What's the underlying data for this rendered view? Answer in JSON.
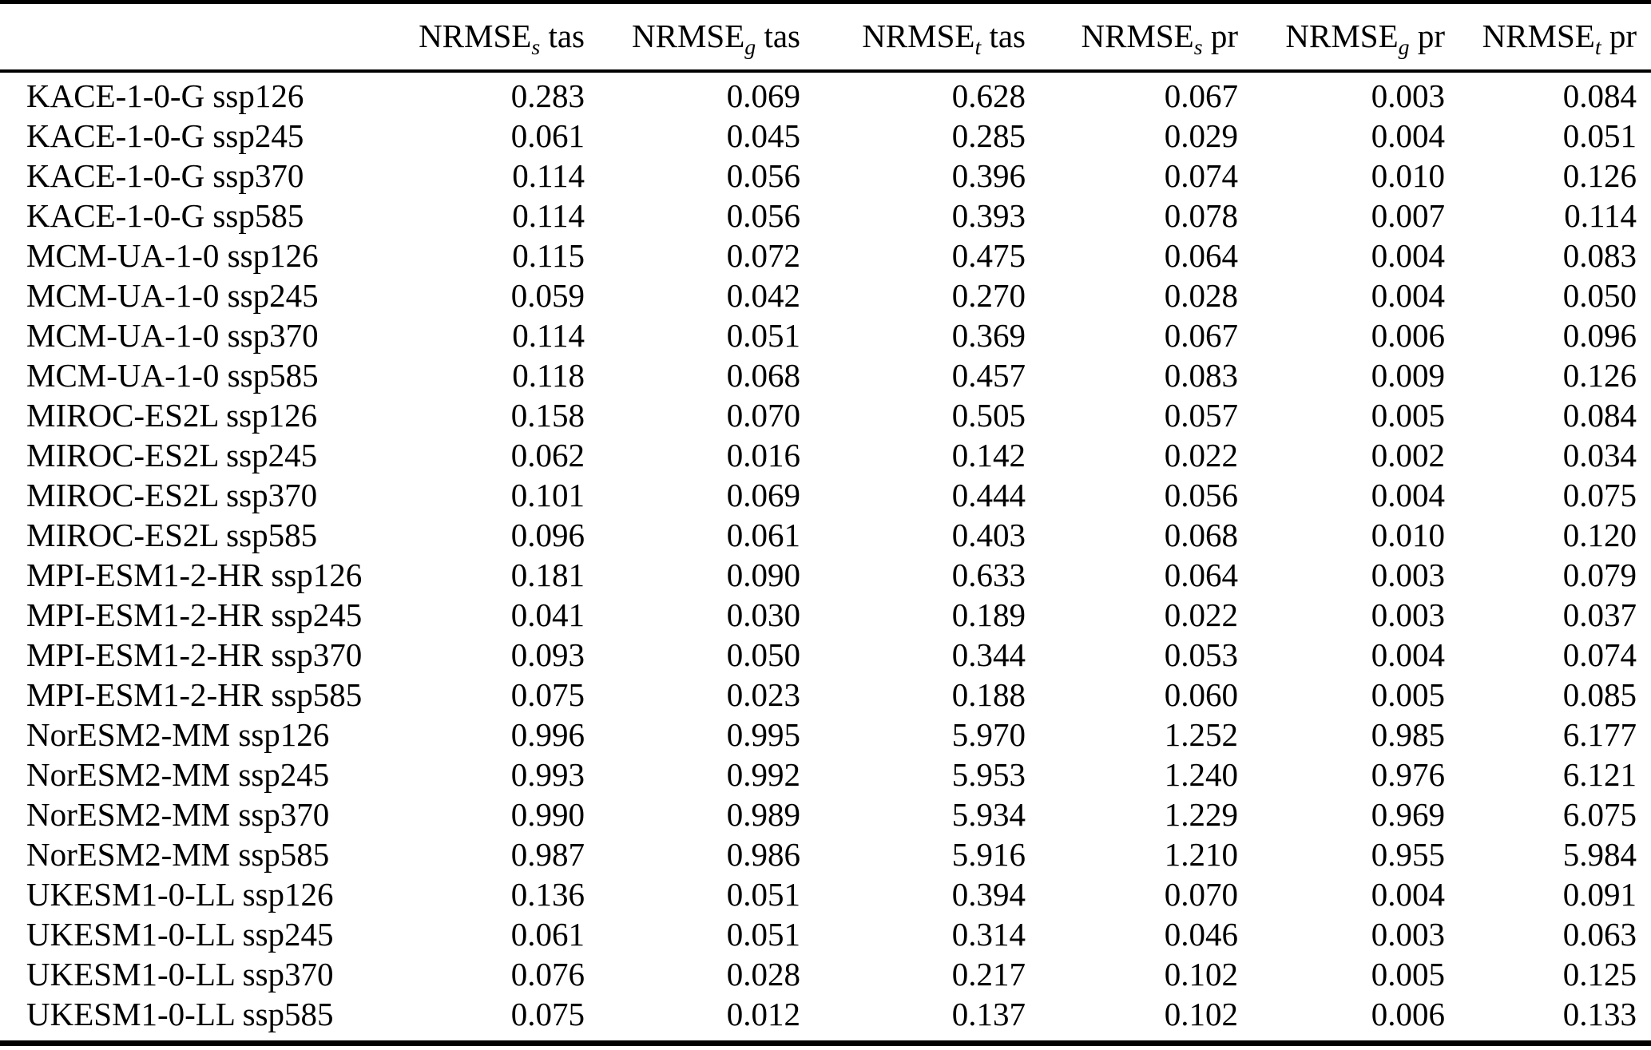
{
  "table": {
    "columns": [
      {
        "base": "NRMSE",
        "sub": "s",
        "metric": "tas"
      },
      {
        "base": "NRMSE",
        "sub": "g",
        "metric": "tas"
      },
      {
        "base": "NRMSE",
        "sub": "t",
        "metric": "tas"
      },
      {
        "base": "NRMSE",
        "sub": "s",
        "metric": "pr"
      },
      {
        "base": "NRMSE",
        "sub": "g",
        "metric": "pr"
      },
      {
        "base": "NRMSE",
        "sub": "t",
        "metric": "pr"
      }
    ],
    "rows": [
      {
        "label": "KACE-1-0-G ssp126",
        "values": [
          "0.283",
          "0.069",
          "0.628",
          "0.067",
          "0.003",
          "0.084"
        ]
      },
      {
        "label": "KACE-1-0-G ssp245",
        "values": [
          "0.061",
          "0.045",
          "0.285",
          "0.029",
          "0.004",
          "0.051"
        ]
      },
      {
        "label": "KACE-1-0-G ssp370",
        "values": [
          "0.114",
          "0.056",
          "0.396",
          "0.074",
          "0.010",
          "0.126"
        ]
      },
      {
        "label": "KACE-1-0-G ssp585",
        "values": [
          "0.114",
          "0.056",
          "0.393",
          "0.078",
          "0.007",
          "0.114"
        ]
      },
      {
        "label": "MCM-UA-1-0 ssp126",
        "values": [
          "0.115",
          "0.072",
          "0.475",
          "0.064",
          "0.004",
          "0.083"
        ]
      },
      {
        "label": "MCM-UA-1-0 ssp245",
        "values": [
          "0.059",
          "0.042",
          "0.270",
          "0.028",
          "0.004",
          "0.050"
        ]
      },
      {
        "label": "MCM-UA-1-0 ssp370",
        "values": [
          "0.114",
          "0.051",
          "0.369",
          "0.067",
          "0.006",
          "0.096"
        ]
      },
      {
        "label": "MCM-UA-1-0 ssp585",
        "values": [
          "0.118",
          "0.068",
          "0.457",
          "0.083",
          "0.009",
          "0.126"
        ]
      },
      {
        "label": "MIROC-ES2L ssp126",
        "values": [
          "0.158",
          "0.070",
          "0.505",
          "0.057",
          "0.005",
          "0.084"
        ]
      },
      {
        "label": "MIROC-ES2L ssp245",
        "values": [
          "0.062",
          "0.016",
          "0.142",
          "0.022",
          "0.002",
          "0.034"
        ]
      },
      {
        "label": "MIROC-ES2L ssp370",
        "values": [
          "0.101",
          "0.069",
          "0.444",
          "0.056",
          "0.004",
          "0.075"
        ]
      },
      {
        "label": "MIROC-ES2L ssp585",
        "values": [
          "0.096",
          "0.061",
          "0.403",
          "0.068",
          "0.010",
          "0.120"
        ]
      },
      {
        "label": "MPI-ESM1-2-HR ssp126",
        "values": [
          "0.181",
          "0.090",
          "0.633",
          "0.064",
          "0.003",
          "0.079"
        ]
      },
      {
        "label": "MPI-ESM1-2-HR ssp245",
        "values": [
          "0.041",
          "0.030",
          "0.189",
          "0.022",
          "0.003",
          "0.037"
        ]
      },
      {
        "label": "MPI-ESM1-2-HR ssp370",
        "values": [
          "0.093",
          "0.050",
          "0.344",
          "0.053",
          "0.004",
          "0.074"
        ]
      },
      {
        "label": "MPI-ESM1-2-HR ssp585",
        "values": [
          "0.075",
          "0.023",
          "0.188",
          "0.060",
          "0.005",
          "0.085"
        ]
      },
      {
        "label": "NorESM2-MM ssp126",
        "values": [
          "0.996",
          "0.995",
          "5.970",
          "1.252",
          "0.985",
          "6.177"
        ]
      },
      {
        "label": "NorESM2-MM ssp245",
        "values": [
          "0.993",
          "0.992",
          "5.953",
          "1.240",
          "0.976",
          "6.121"
        ]
      },
      {
        "label": "NorESM2-MM ssp370",
        "values": [
          "0.990",
          "0.989",
          "5.934",
          "1.229",
          "0.969",
          "6.075"
        ]
      },
      {
        "label": "NorESM2-MM ssp585",
        "values": [
          "0.987",
          "0.986",
          "5.916",
          "1.210",
          "0.955",
          "5.984"
        ]
      },
      {
        "label": "UKESM1-0-LL ssp126",
        "values": [
          "0.136",
          "0.051",
          "0.394",
          "0.070",
          "0.004",
          "0.091"
        ]
      },
      {
        "label": "UKESM1-0-LL ssp245",
        "values": [
          "0.061",
          "0.051",
          "0.314",
          "0.046",
          "0.003",
          "0.063"
        ]
      },
      {
        "label": "UKESM1-0-LL ssp370",
        "values": [
          "0.076",
          "0.028",
          "0.217",
          "0.102",
          "0.005",
          "0.125"
        ]
      },
      {
        "label": "UKESM1-0-LL ssp585",
        "values": [
          "0.075",
          "0.012",
          "0.137",
          "0.102",
          "0.006",
          "0.133"
        ]
      }
    ]
  }
}
